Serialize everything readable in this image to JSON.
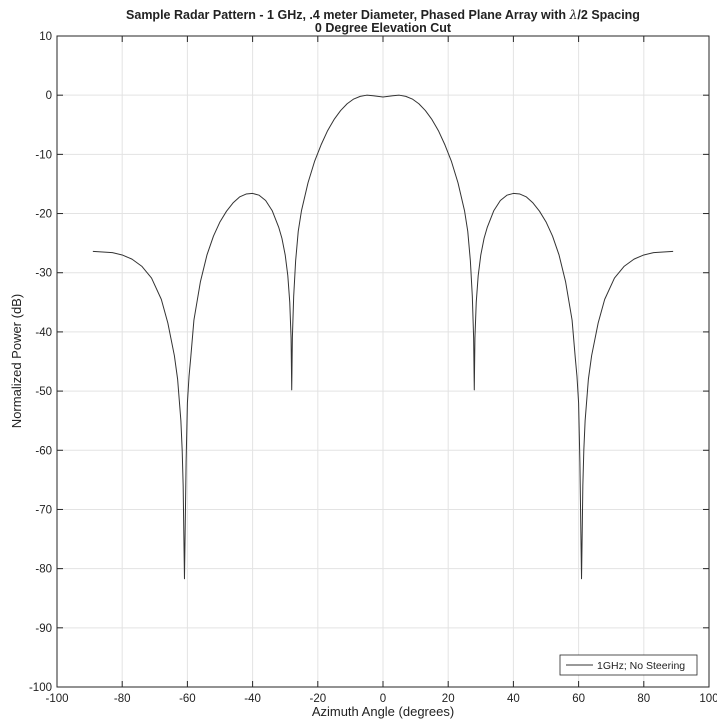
{
  "chart_data": {
    "type": "line",
    "title_line1_prefix": "Sample Radar Pattern - 1 GHz, .4 meter Diameter, Phased Plane Array with ",
    "title_lambda": "λ",
    "title_line1_suffix": "/2 Spacing",
    "title_line2": "0 Degree Elevation Cut",
    "xlabel": "Azimuth Angle (degrees)",
    "ylabel": "Normalized Power (dB)",
    "xlim": [
      -100,
      100
    ],
    "ylim": [
      -100,
      10
    ],
    "xticks": [
      -100,
      -80,
      -60,
      -40,
      -20,
      0,
      20,
      40,
      60,
      80,
      100
    ],
    "yticks": [
      10,
      0,
      -10,
      -20,
      -30,
      -40,
      -50,
      -60,
      -70,
      -80,
      -90,
      -100
    ],
    "grid": true,
    "legend_location": "bottom-right",
    "line_color": "#333333",
    "series": [
      {
        "name": "1GHz; No Steering",
        "x": [
          -89,
          -86,
          -83,
          -80,
          -77,
          -74,
          -71,
          -68,
          -66,
          -64,
          -63,
          -62,
          -61.6,
          -61.3,
          -61.1,
          -60.9,
          -60.7,
          -60.4,
          -60,
          -59.5,
          -59,
          -58,
          -56,
          -54,
          -52,
          -50,
          -48,
          -46,
          -44,
          -42,
          -40,
          -38,
          -36,
          -34,
          -32,
          -31,
          -30,
          -29.2,
          -28.6,
          -28.2,
          -28,
          -27.8,
          -27.4,
          -26.8,
          -26,
          -25,
          -23,
          -21,
          -19,
          -17,
          -15,
          -13,
          -11,
          -9,
          -7,
          -5,
          -3,
          0,
          3,
          5,
          7,
          9,
          11,
          13,
          15,
          17,
          19,
          21,
          23,
          25,
          26,
          26.8,
          27.4,
          27.8,
          28,
          28.2,
          28.6,
          29.2,
          30,
          31,
          32,
          34,
          36,
          38,
          40,
          42,
          44,
          46,
          48,
          50,
          52,
          54,
          56,
          58,
          59,
          59.5,
          60,
          60.4,
          60.7,
          60.9,
          61.1,
          61.3,
          61.6,
          62,
          63,
          64,
          66,
          68,
          71,
          74,
          77,
          80,
          83,
          86,
          89
        ],
        "y": [
          -26.4,
          -26.5,
          -26.6,
          -27.0,
          -27.7,
          -28.9,
          -30.9,
          -34.5,
          -38.5,
          -44.0,
          -48.0,
          -55.0,
          -60.0,
          -66.0,
          -74.0,
          -81.7,
          -74.0,
          -62.0,
          -52.0,
          -47.5,
          -44.5,
          -38.0,
          -31.5,
          -27.0,
          -23.8,
          -21.4,
          -19.6,
          -18.2,
          -17.2,
          -16.7,
          -16.6,
          -16.9,
          -17.8,
          -19.5,
          -22.3,
          -24.2,
          -27.0,
          -30.5,
          -35.0,
          -41.0,
          -49.8,
          -41.0,
          -34.0,
          -28.0,
          -23.0,
          -19.5,
          -14.8,
          -11.2,
          -8.4,
          -6.0,
          -4.1,
          -2.6,
          -1.45,
          -0.65,
          -0.2,
          0.0,
          -0.1,
          -0.3,
          -0.1,
          0.0,
          -0.2,
          -0.65,
          -1.45,
          -2.6,
          -4.1,
          -6.0,
          -8.4,
          -11.2,
          -14.8,
          -19.5,
          -23.0,
          -28.0,
          -34.0,
          -41.0,
          -49.8,
          -41.0,
          -35.0,
          -30.5,
          -27.0,
          -24.2,
          -22.3,
          -19.5,
          -17.8,
          -16.9,
          -16.6,
          -16.7,
          -17.2,
          -18.2,
          -19.6,
          -21.4,
          -23.8,
          -27.0,
          -31.5,
          -38.0,
          -44.5,
          -47.5,
          -52.0,
          -62.0,
          -74.0,
          -81.7,
          -74.0,
          -66.0,
          -60.0,
          -55.0,
          -48.0,
          -44.0,
          -38.5,
          -34.5,
          -30.9,
          -28.9,
          -27.7,
          -27.0,
          -26.6,
          -26.5,
          -26.4
        ]
      }
    ]
  }
}
